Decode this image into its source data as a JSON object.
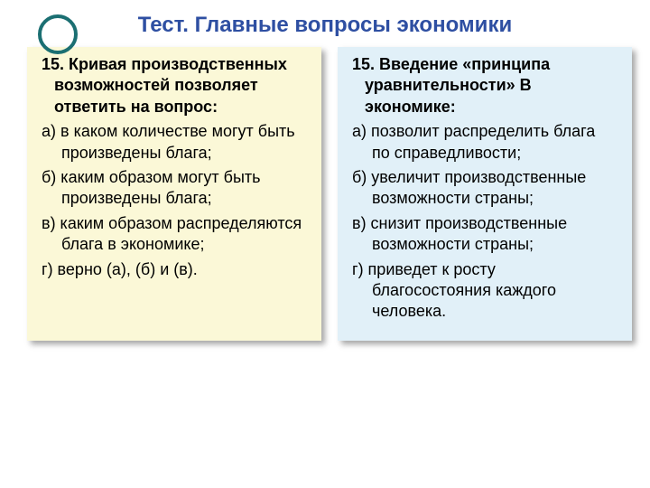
{
  "title": "Тест. Главные вопросы экономики",
  "title_color": "#2e4fa2",
  "deco_ring_color": "#1b6f72",
  "left_card": {
    "background": "#fbf8d7",
    "question": "15. Кривая производственных возможностей позволяет ответить на вопрос:",
    "options": [
      "а) в каком количестве могут быть произведены блага;",
      "б) каким образом могут быть произведены блага;",
      "в) каким образом распределяются блага в экономике;",
      "г) верно (а), (б) и (в)."
    ]
  },
  "right_card": {
    "background": "#e1f0f8",
    "question": "15. Введение «принципа уравнительности» В экономике:",
    "options": [
      "а) позволит распределить блага по справедливости;",
      "б) увеличит производственные возможности страны;",
      "в) снизит производственные возможности страны;",
      "г) приведет к росту благосостояния каждого человека."
    ]
  },
  "typography": {
    "title_fontsize": 24,
    "body_fontsize": 18,
    "font_family": "Verdana"
  },
  "shadow_color": "rgba(0,0,0,0.35)"
}
